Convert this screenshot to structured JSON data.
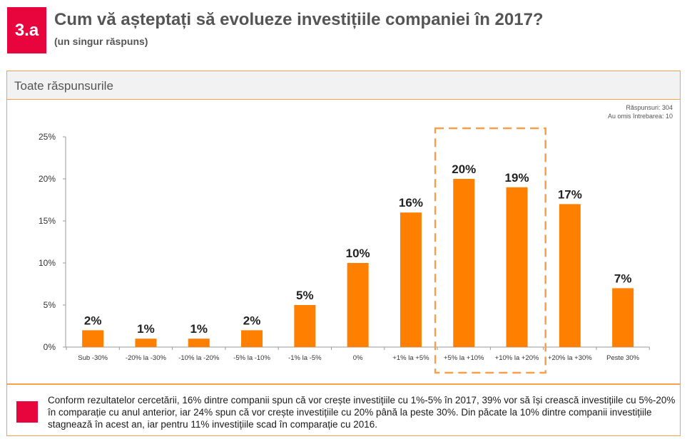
{
  "header": {
    "badge": "3.a",
    "title": "Cum vă așteptați să evolueze investițiile companiei în 2017?",
    "subtitle": "(un singur răspuns)"
  },
  "panel": {
    "title": "Toate răspunsurile",
    "responses": "Răspunsuri: 304",
    "skipped": "Au omis întrebarea: 10"
  },
  "chart_data": {
    "type": "bar",
    "title": "Toate răspunsurile",
    "categories": [
      "Sub -30%",
      "-20% la -30%",
      "-10% la -20%",
      "-5% la -10%",
      "-1% la -5%",
      "0%",
      "+1% la +5%",
      "+5% la +10%",
      "+10% la +20%",
      "+20% la +30%",
      "Peste 30%"
    ],
    "values": [
      2,
      1,
      1,
      2,
      5,
      10,
      16,
      20,
      19,
      17,
      7
    ],
    "data_labels": [
      "2%",
      "1%",
      "1%",
      "2%",
      "5%",
      "10%",
      "16%",
      "20%",
      "19%",
      "17%",
      "7%"
    ],
    "y_ticks": [
      "0%",
      "5%",
      "10%",
      "15%",
      "20%",
      "25%"
    ],
    "ylim": [
      0,
      25
    ],
    "xlabel": "",
    "ylabel": "",
    "highlighted_categories": [
      "+5% la +10%",
      "+10% la +20%"
    ],
    "bar_color": "#ff7f00",
    "highlight_color": "#f5a04a"
  },
  "footer": {
    "text": "Conform rezultatelor cercetării, 16% dintre companii spun că vor crește investițiile cu 1%-5% în 2017, 39% vor să își crească investițiile cu 5%-20% în comparație cu anul anterior, iar 24% spun că vor crește investițiile cu 20% până la peste 30%. Din păcate la 10% dintre companii investițiile stagnează în acest an, iar pentru 11% investițiile scad în comparație cu 2016."
  },
  "colors": {
    "accent": "#e8053d",
    "border": "#f5a04a",
    "bar": "#ff7f00"
  }
}
